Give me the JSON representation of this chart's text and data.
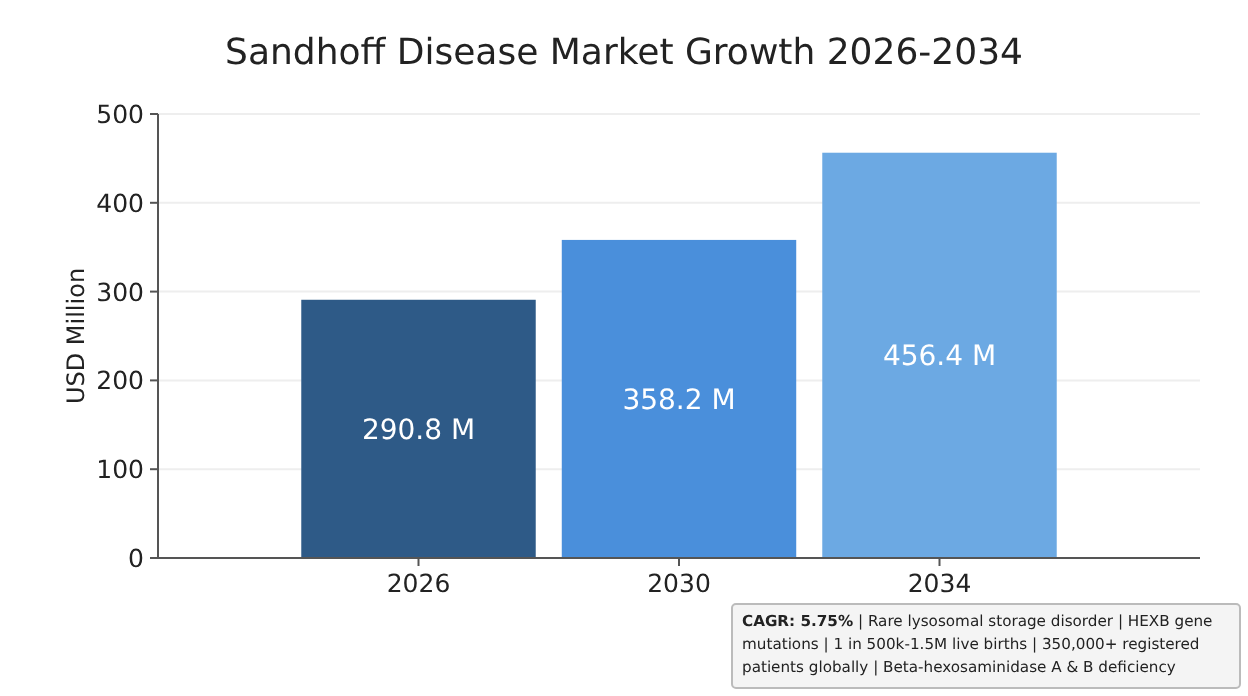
{
  "chart_data": {
    "type": "bar",
    "title": "Sandhoff Disease Market Growth 2026-2034",
    "ylabel": "USD Million",
    "categories": [
      "2026",
      "2030",
      "2034"
    ],
    "values": [
      290.8,
      358.2,
      456.4
    ],
    "value_labels": [
      "290.8 M",
      "358.2 M",
      "456.4 M"
    ],
    "colors": [
      "#2e5a87",
      "#4a8fdb",
      "#6ca9e3"
    ],
    "ylim": [
      0,
      500
    ],
    "yticks": [
      0,
      100,
      200,
      300,
      400,
      500
    ],
    "grid": "y",
    "annotations": [
      "CAGR: 5.75% | Rare lysosomal storage disorder | HEXB gene mutations | 1 in 500k-1.5M live births | 350,000+ registered patients globally | Beta-hexosaminidase A & B deficiency"
    ]
  }
}
